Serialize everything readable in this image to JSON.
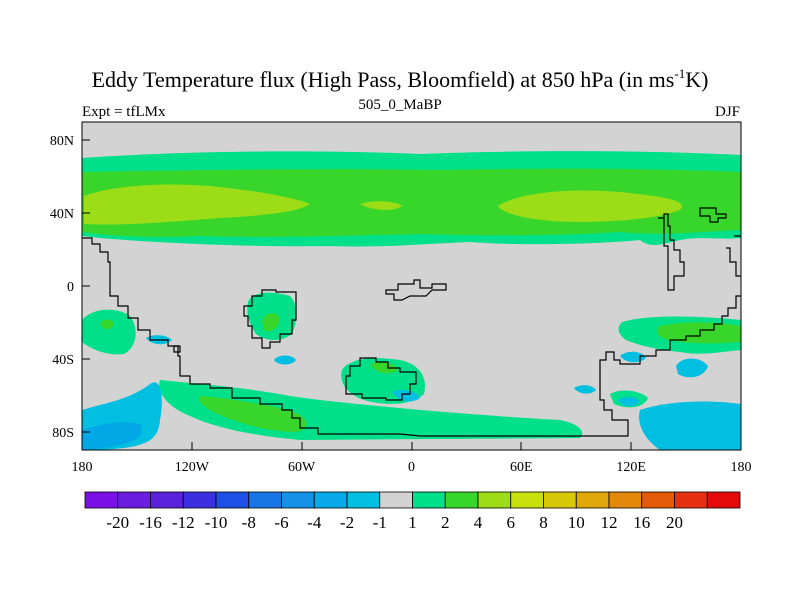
{
  "title_main": "Eddy Temperature flux (High Pass, Bloomfield) at 850 hPa (in ms",
  "title_sup": "-1",
  "title_end": "K)",
  "expt_label": "Expt = tfLMx",
  "run_label": "505_0_MaBP",
  "season_label": "DJF",
  "colors": {
    "land_outline": "#000000",
    "neutral": "#d3d3d3",
    "c1_2": "#00e08a",
    "c2_4": "#38d52a",
    "c4_6": "#9cdd18",
    "neg1_2": "#00bfe0",
    "neg2_4": "#00a8e6"
  },
  "chart_data": {
    "type": "heatmap",
    "title": "Eddy Temperature flux (High Pass, Bloomfield) at 850 hPa (in ms-1K)",
    "projection": "cylindrical equidistant",
    "lon_range": [
      -180,
      180
    ],
    "lat_range": [
      -90,
      90
    ],
    "x_ticks": [
      {
        "lon": -180,
        "label": "180"
      },
      {
        "lon": -120,
        "label": "120W"
      },
      {
        "lon": -60,
        "label": "60W"
      },
      {
        "lon": 0,
        "label": "0"
      },
      {
        "lon": 60,
        "label": "60E"
      },
      {
        "lon": 120,
        "label": "120E"
      },
      {
        "lon": 180,
        "label": "180"
      }
    ],
    "y_ticks": [
      {
        "lat": 80,
        "label": "80N"
      },
      {
        "lat": 40,
        "label": "40N"
      },
      {
        "lat": 0,
        "label": "0"
      },
      {
        "lat": -40,
        "label": "40S"
      },
      {
        "lat": -80,
        "label": "80S"
      }
    ],
    "colorbar": {
      "colors": [
        "#7a0fe6",
        "#6a1ce0",
        "#5a22dc",
        "#3c2fe0",
        "#1e4fe6",
        "#1875e6",
        "#1493e6",
        "#08a8ea",
        "#00bfe0",
        "#d3d3d3",
        "#00e08a",
        "#38d52a",
        "#9cdd18",
        "#c8e00c",
        "#d8c80a",
        "#e0a80a",
        "#e3880a",
        "#e35a08",
        "#e53012",
        "#e50a0a"
      ],
      "labels": [
        "-20",
        "-16",
        "-12",
        "-10",
        "-8",
        "-6",
        "-4",
        "-2",
        "-1",
        "1",
        "2",
        "4",
        "6",
        "8",
        "10",
        "12",
        "16",
        "20"
      ]
    }
  }
}
